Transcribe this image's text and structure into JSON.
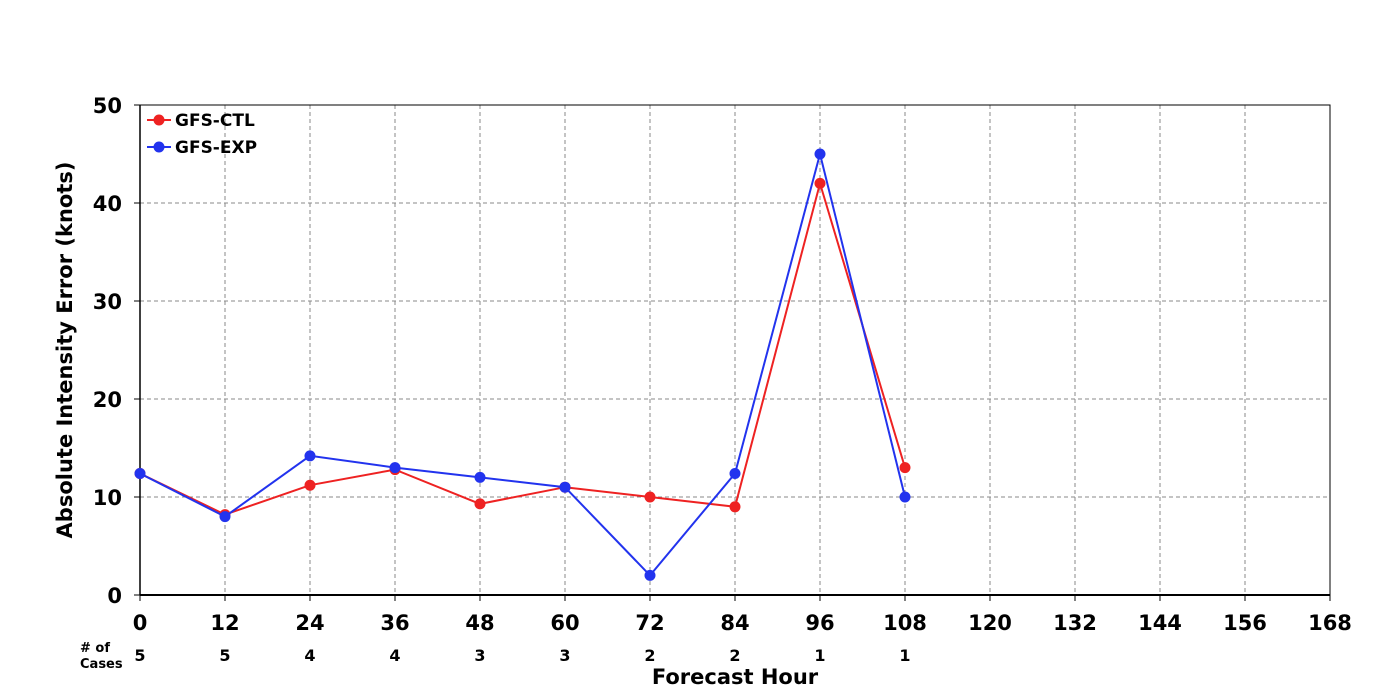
{
  "chart_data": {
    "type": "line",
    "xlabel": "Forecast Hour",
    "ylabel": "Absolute Intensity Error (knots)",
    "xlim": [
      0,
      168
    ],
    "ylim": [
      0,
      50
    ],
    "x_ticks": [
      0,
      12,
      24,
      36,
      48,
      60,
      72,
      84,
      96,
      108,
      120,
      132,
      144,
      156,
      168
    ],
    "y_ticks": [
      0,
      10,
      20,
      30,
      40,
      50
    ],
    "grid": true,
    "legend_position": "top-left",
    "series": [
      {
        "name": "GFS-CTL",
        "color": "#ee2222",
        "x": [
          0,
          12,
          24,
          36,
          48,
          60,
          72,
          84,
          96,
          108
        ],
        "values": [
          12.4,
          8.2,
          11.2,
          12.8,
          9.3,
          11.0,
          10.0,
          9.0,
          42.0,
          13.0
        ]
      },
      {
        "name": "GFS-EXP",
        "color": "#2233ee",
        "x": [
          0,
          12,
          24,
          36,
          48,
          60,
          72,
          84,
          96,
          108
        ],
        "values": [
          12.4,
          8.0,
          14.2,
          13.0,
          12.0,
          11.0,
          2.0,
          12.4,
          45.0,
          10.0
        ]
      }
    ],
    "cases_label_line1": "# of",
    "cases_label_line2": "Cases",
    "cases": {
      "x": [
        0,
        12,
        24,
        36,
        48,
        60,
        72,
        84,
        96,
        108
      ],
      "values": [
        "5",
        "5",
        "4",
        "4",
        "3",
        "3",
        "2",
        "2",
        "1",
        "1"
      ]
    }
  }
}
